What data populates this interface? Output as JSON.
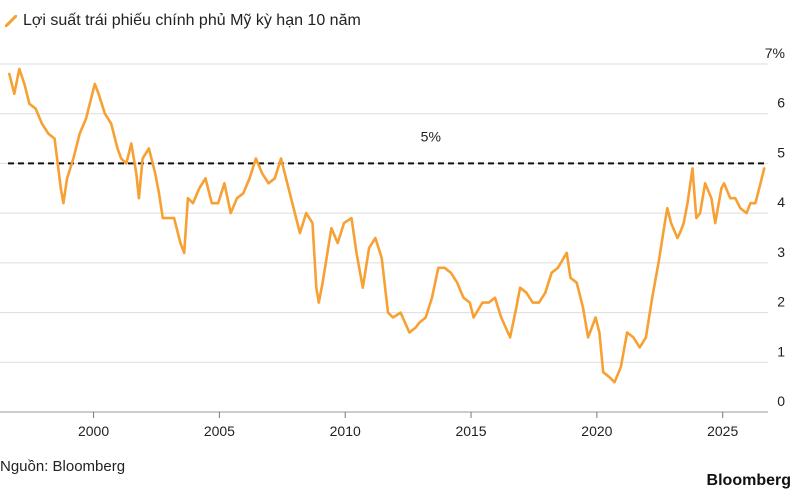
{
  "chart_data": {
    "type": "line",
    "title": "Lợi suất trái phiếu chính phủ Mỹ kỳ hạn 10 năm",
    "source": "Nguồn: Bloomberg",
    "brand": "Bloomberg",
    "x_range": [
      1996.6,
      2026.8
    ],
    "ylim": [
      0,
      7
    ],
    "x_ticks": [
      2000,
      2005,
      2010,
      2015,
      2020,
      2025
    ],
    "x_tick_labels": [
      "2000",
      "2005",
      "2010",
      "2015",
      "2020",
      "2025"
    ],
    "y_ticks": [
      0,
      1,
      2,
      3,
      4,
      5,
      6,
      7
    ],
    "y_tick_labels": [
      "0",
      "1",
      "2",
      "3",
      "4",
      "5",
      "6",
      "7%"
    ],
    "grid": "horizontal",
    "reference_line": {
      "value": 5,
      "label": "5%",
      "style": "dashed",
      "color": "#111111"
    },
    "series": [
      {
        "color": "#F7A034",
        "x": [
          1996.65,
          1996.85,
          1997.05,
          1997.25,
          1997.45,
          1997.7,
          1997.95,
          1998.2,
          1998.45,
          1998.7,
          1998.8,
          1998.95,
          1999.2,
          1999.45,
          1999.7,
          1999.95,
          2000.05,
          2000.2,
          2000.45,
          2000.7,
          2000.95,
          2001.1,
          2001.3,
          2001.5,
          2001.7,
          2001.8,
          2001.95,
          2002.2,
          2002.45,
          2002.6,
          2002.75,
          2002.95,
          2003.2,
          2003.45,
          2003.6,
          2003.75,
          2003.95,
          2004.2,
          2004.45,
          2004.7,
          2004.95,
          2005.2,
          2005.45,
          2005.7,
          2005.95,
          2006.2,
          2006.45,
          2006.7,
          2006.95,
          2007.2,
          2007.45,
          2007.7,
          2007.95,
          2008.2,
          2008.45,
          2008.7,
          2008.85,
          2008.95,
          2009.1,
          2009.45,
          2009.7,
          2009.95,
          2010.25,
          2010.45,
          2010.7,
          2010.95,
          2011.2,
          2011.45,
          2011.7,
          2011.9,
          2012.2,
          2012.55,
          2012.8,
          2012.95,
          2013.2,
          2013.45,
          2013.7,
          2013.95,
          2014.2,
          2014.45,
          2014.7,
          2014.95,
          2015.1,
          2015.45,
          2015.7,
          2015.95,
          2016.2,
          2016.55,
          2016.8,
          2016.95,
          2017.2,
          2017.45,
          2017.7,
          2017.95,
          2018.2,
          2018.45,
          2018.8,
          2018.95,
          2019.2,
          2019.45,
          2019.65,
          2019.95,
          2020.1,
          2020.25,
          2020.5,
          2020.7,
          2020.95,
          2021.2,
          2021.45,
          2021.7,
          2021.95,
          2022.2,
          2022.45,
          2022.7,
          2022.8,
          2022.95,
          2023.2,
          2023.3,
          2023.45,
          2023.6,
          2023.8,
          2023.95,
          2024.1,
          2024.3,
          2024.55,
          2024.7,
          2024.95,
          2025.05,
          2025.3,
          2025.5,
          2025.7,
          2025.95,
          2026.1,
          2026.3,
          2026.5,
          2026.65
        ],
        "y": [
          6.8,
          6.4,
          6.9,
          6.6,
          6.2,
          6.1,
          5.8,
          5.6,
          5.5,
          4.5,
          4.2,
          4.7,
          5.1,
          5.6,
          5.9,
          6.4,
          6.6,
          6.4,
          6.0,
          5.8,
          5.3,
          5.1,
          5.0,
          5.4,
          4.8,
          4.3,
          5.1,
          5.3,
          4.8,
          4.4,
          3.9,
          3.9,
          3.9,
          3.4,
          3.2,
          4.3,
          4.2,
          4.5,
          4.7,
          4.2,
          4.2,
          4.6,
          4.0,
          4.3,
          4.4,
          4.7,
          5.1,
          4.8,
          4.6,
          4.7,
          5.1,
          4.6,
          4.1,
          3.6,
          4.0,
          3.8,
          2.5,
          2.2,
          2.6,
          3.7,
          3.4,
          3.8,
          3.9,
          3.2,
          2.5,
          3.3,
          3.5,
          3.1,
          2.0,
          1.9,
          2.0,
          1.6,
          1.7,
          1.8,
          1.9,
          2.3,
          2.9,
          2.9,
          2.8,
          2.6,
          2.3,
          2.2,
          1.9,
          2.2,
          2.2,
          2.3,
          1.9,
          1.5,
          2.1,
          2.5,
          2.4,
          2.2,
          2.2,
          2.4,
          2.8,
          2.9,
          3.2,
          2.7,
          2.6,
          2.1,
          1.5,
          1.9,
          1.6,
          0.8,
          0.7,
          0.6,
          0.9,
          1.6,
          1.5,
          1.3,
          1.5,
          2.3,
          3.0,
          3.8,
          4.1,
          3.8,
          3.5,
          3.6,
          3.8,
          4.2,
          4.9,
          3.9,
          4.0,
          4.6,
          4.3,
          3.8,
          4.5,
          4.6,
          4.3,
          4.3,
          4.1,
          4.0,
          4.2,
          4.2,
          4.6,
          4.9
        ]
      }
    ]
  }
}
